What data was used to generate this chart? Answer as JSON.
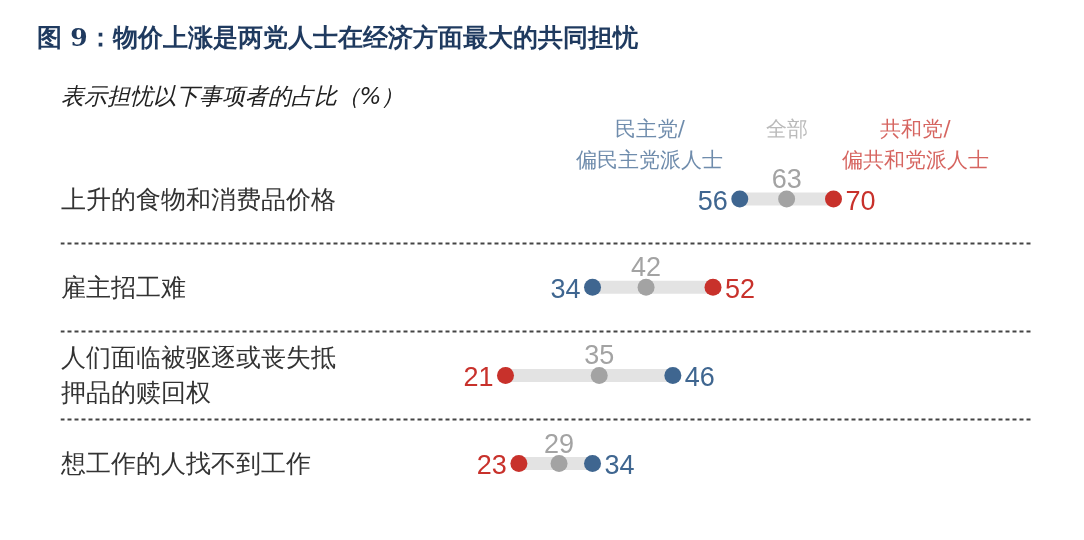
{
  "chart_data": {
    "type": "scatter",
    "orientation": "horizontal",
    "title": "图 9：物价上涨是两党人士在经济方面最大的共同担忧",
    "subtitle": "表示担忧以下事项者的占比（%）",
    "categories": [
      "上升的食物和消费品价格",
      "雇主招工难",
      "人们面临被驱逐或丧失抵押品的赎回权",
      "想工作的人找不到工作"
    ],
    "series": [
      {
        "name": "民主党/偏民主党派人士",
        "color": "#3f6690",
        "values": [
          56,
          34,
          46,
          34
        ]
      },
      {
        "name": "全部",
        "color": "#a3a3a3",
        "values": [
          63,
          42,
          35,
          29
        ]
      },
      {
        "name": "共和党/偏共和党派人士",
        "color": "#c8312b",
        "values": [
          70,
          52,
          21,
          23
        ]
      }
    ],
    "data_labels": true,
    "marker": "circle",
    "grid": "y",
    "tick_labels": "y"
  }
}
